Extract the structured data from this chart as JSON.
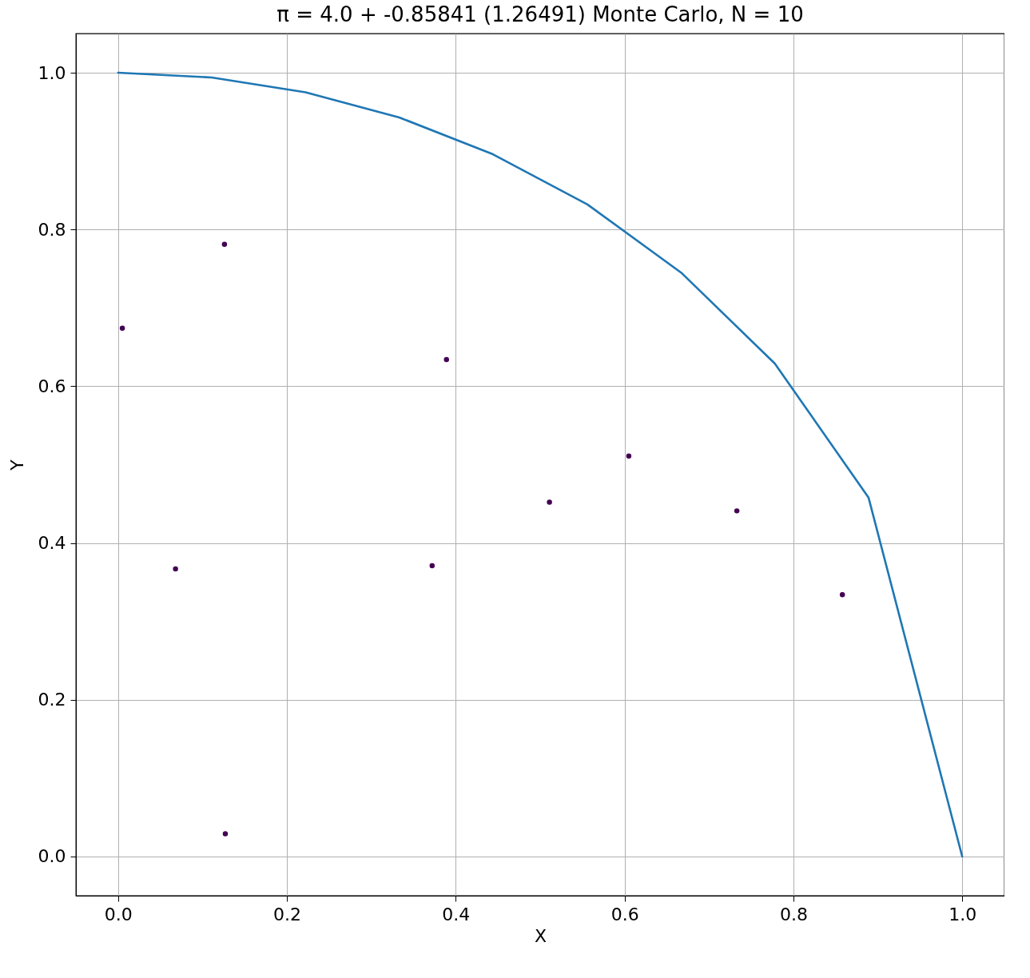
{
  "chart_data": {
    "type": "scatter",
    "title": "π = 4.0 + -0.85841 (1.26491)  Monte Carlo, N =  10",
    "xlabel": "X",
    "ylabel": "Y",
    "series": [
      {
        "type": "line",
        "color": "#1f77b4",
        "marker": "none",
        "x": [
          0,
          0.111,
          0.222,
          0.333,
          0.444,
          0.556,
          0.667,
          0.778,
          0.889,
          1.0
        ],
        "values": [
          1.0,
          0.994,
          0.975,
          0.943,
          0.896,
          0.832,
          0.745,
          0.629,
          0.458,
          0.0
        ]
      },
      {
        "type": "scatter",
        "color": "#440154",
        "marker": "circle",
        "x": [
          0.005,
          0.126,
          0.068,
          0.127,
          0.389,
          0.372,
          0.511,
          0.605,
          0.733,
          0.858
        ],
        "values": [
          0.674,
          0.781,
          0.367,
          0.029,
          0.634,
          0.371,
          0.452,
          0.511,
          0.441,
          0.334
        ]
      }
    ],
    "xlim": [
      -0.05,
      1.05
    ],
    "ylim": [
      -0.05,
      1.05
    ],
    "xticks": [
      {
        "value": 0,
        "label": "0.0"
      },
      0.2,
      0.4,
      0.6,
      0.8,
      {
        "value": 1,
        "label": "1.0"
      }
    ],
    "yticks": [
      {
        "value": 0,
        "label": "0.0"
      },
      0.2,
      0.4,
      0.6,
      0.8,
      {
        "value": 1,
        "label": "1.0"
      }
    ],
    "grid": true
  }
}
